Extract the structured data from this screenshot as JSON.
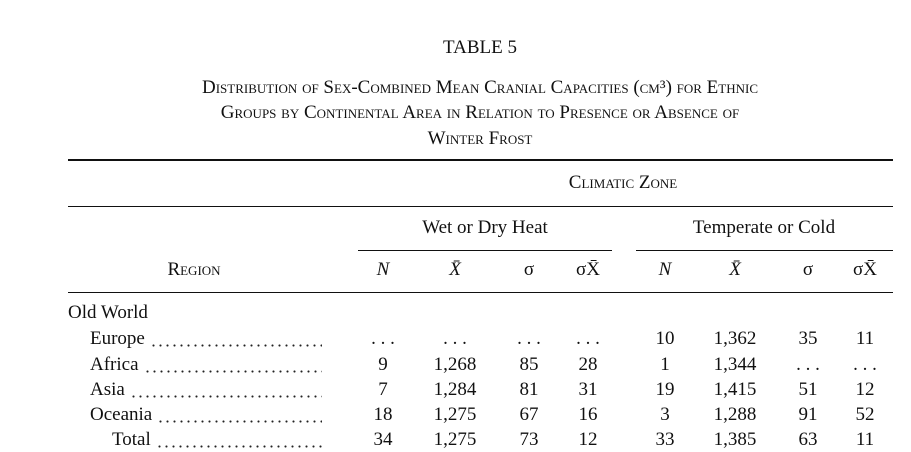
{
  "table_number": "TABLE 5",
  "title_lines": [
    "Distribution of Sex-Combined Mean Cranial Capacities (cm³) for Ethnic",
    "Groups by Continental Area in Relation to Presence or Absence of",
    "Winter Frost"
  ],
  "header": {
    "zone": "Climatic Zone",
    "groups": [
      "Wet or Dry Heat",
      "Temperate or Cold"
    ],
    "region": "Region",
    "columns": [
      "N",
      "X̄",
      "σ",
      "σX̄",
      "N",
      "X̄",
      "σ",
      "σX̄"
    ]
  },
  "section": "Old World",
  "rows": [
    {
      "label": "Europe",
      "cells": [
        ". . .",
        ". . .",
        ". . .",
        ". . .",
        "10",
        "1,362",
        "35",
        "11"
      ]
    },
    {
      "label": "Africa",
      "cells": [
        "9",
        "1,268",
        "85",
        "28",
        "1",
        "1,344",
        ". . .",
        ". . ."
      ]
    },
    {
      "label": "Asia",
      "cells": [
        "7",
        "1,284",
        "81",
        "31",
        "19",
        "1,415",
        "51",
        "12"
      ]
    },
    {
      "label": "Oceania",
      "cells": [
        "18",
        "1,275",
        "67",
        "16",
        "3",
        "1,288",
        "91",
        "52"
      ]
    },
    {
      "label": "Total",
      "cells": [
        "34",
        "1,275",
        "73",
        "12",
        "33",
        "1,385",
        "63",
        "11"
      ]
    }
  ]
}
